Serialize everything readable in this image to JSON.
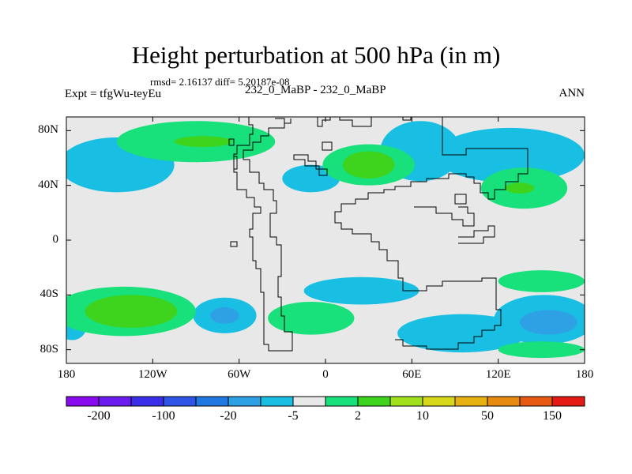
{
  "chart_data": {
    "type": "heatmap",
    "title": "Height perturbation at 500 hPa (in m)",
    "stats_line": "rmsd= 2.16137 diff= 5.20187e-08",
    "experiment": "Expt = tfgWu-teyEu",
    "subtitle": "232_0_MaBP - 232_0_MaBP",
    "season": "ANN",
    "lon_range": [
      -180,
      180
    ],
    "lat_range": [
      -90,
      90
    ],
    "x_ticks": [
      {
        "value": -180,
        "label": "180"
      },
      {
        "value": -120,
        "label": "120W"
      },
      {
        "value": -60,
        "label": "60W"
      },
      {
        "value": 0,
        "label": "0"
      },
      {
        "value": 60,
        "label": "60E"
      },
      {
        "value": 120,
        "label": "120E"
      },
      {
        "value": 180,
        "label": "180"
      }
    ],
    "y_ticks": [
      {
        "value": 80,
        "label": "80N"
      },
      {
        "value": 40,
        "label": "40N"
      },
      {
        "value": 0,
        "label": "0"
      },
      {
        "value": -40,
        "label": "40S"
      },
      {
        "value": -80,
        "label": "80S"
      }
    ],
    "colorbar": {
      "colors": [
        "#8a0aef",
        "#6a1cf0",
        "#3a2ee8",
        "#2f55e6",
        "#1f78e2",
        "#2ea0e4",
        "#18bfe3",
        "#e8e8e8",
        "#18e07a",
        "#3ed41e",
        "#a0e01c",
        "#d8d81a",
        "#e6b212",
        "#e68a10",
        "#e65a12",
        "#e61a14"
      ],
      "labels": [
        {
          "index": 1,
          "text": "-200"
        },
        {
          "index": 3,
          "text": "-100"
        },
        {
          "index": 5,
          "text": "-20"
        },
        {
          "index": 7,
          "text": "-5"
        },
        {
          "index": 9,
          "text": "2"
        },
        {
          "index": 11,
          "text": "10"
        },
        {
          "index": 13,
          "text": "50"
        },
        {
          "index": 15,
          "text": "150"
        }
      ]
    },
    "anomaly_regions": [
      {
        "level": "-5",
        "color": "#18bfe3",
        "lon_center": 66,
        "lat_center": 65,
        "lon_halfwidth": 28,
        "lat_halfwidth": 22
      },
      {
        "level": "-5",
        "color": "#18bfe3",
        "lon_center": 128,
        "lat_center": 62,
        "lon_halfwidth": 52,
        "lat_halfwidth": 20
      },
      {
        "level": "-5",
        "color": "#18bfe3",
        "lon_center": -145,
        "lat_center": 55,
        "lon_halfwidth": 40,
        "lat_halfwidth": 20
      },
      {
        "level": "-5",
        "color": "#18bfe3",
        "lon_center": -10,
        "lat_center": 45,
        "lon_halfwidth": 20,
        "lat_halfwidth": 10
      },
      {
        "level": "-5",
        "color": "#18bfe3",
        "lon_center": 25,
        "lat_center": -37,
        "lon_halfwidth": 40,
        "lat_halfwidth": 10
      },
      {
        "level": "-5",
        "color": "#18bfe3",
        "lon_center": -70,
        "lat_center": -55,
        "lon_halfwidth": 22,
        "lat_halfwidth": 13
      },
      {
        "level": "-5",
        "color": "#18bfe3",
        "lon_center": 95,
        "lat_center": -68,
        "lon_halfwidth": 45,
        "lat_halfwidth": 14
      },
      {
        "level": "-5",
        "color": "#18bfe3",
        "lon_center": 152,
        "lat_center": -58,
        "lon_halfwidth": 35,
        "lat_halfwidth": 18
      },
      {
        "level": "-5",
        "color": "#18bfe3",
        "lon_center": -176,
        "lat_center": -63,
        "lon_halfwidth": 10,
        "lat_halfwidth": 10
      },
      {
        "level": "-20",
        "color": "#2ea0e4",
        "lon_center": -70,
        "lat_center": -55,
        "lon_halfwidth": 10,
        "lat_halfwidth": 6
      },
      {
        "level": "-20",
        "color": "#2ea0e4",
        "lon_center": 155,
        "lat_center": -60,
        "lon_halfwidth": 20,
        "lat_halfwidth": 9
      },
      {
        "level": "2",
        "color": "#18e07a",
        "lon_center": -90,
        "lat_center": 72,
        "lon_halfwidth": 55,
        "lat_halfwidth": 15
      },
      {
        "level": "2",
        "color": "#18e07a",
        "lon_center": 30,
        "lat_center": 55,
        "lon_halfwidth": 32,
        "lat_halfwidth": 15
      },
      {
        "level": "2",
        "color": "#18e07a",
        "lon_center": 138,
        "lat_center": 38,
        "lon_halfwidth": 30,
        "lat_halfwidth": 15
      },
      {
        "level": "2",
        "color": "#18e07a",
        "lon_center": -140,
        "lat_center": -52,
        "lon_halfwidth": 50,
        "lat_halfwidth": 18
      },
      {
        "level": "2",
        "color": "#18e07a",
        "lon_center": -10,
        "lat_center": -57,
        "lon_halfwidth": 30,
        "lat_halfwidth": 12
      },
      {
        "level": "2",
        "color": "#18e07a",
        "lon_center": 150,
        "lat_center": -30,
        "lon_halfwidth": 30,
        "lat_halfwidth": 8
      },
      {
        "level": "2",
        "color": "#18e07a",
        "lon_center": 150,
        "lat_center": -80,
        "lon_halfwidth": 30,
        "lat_halfwidth": 6
      },
      {
        "level": "10",
        "color": "#3ed41e",
        "lon_center": -85,
        "lat_center": 72,
        "lon_halfwidth": 20,
        "lat_halfwidth": 4
      },
      {
        "level": "10",
        "color": "#3ed41e",
        "lon_center": 30,
        "lat_center": 55,
        "lon_halfwidth": 18,
        "lat_halfwidth": 10
      },
      {
        "level": "10",
        "color": "#3ed41e",
        "lon_center": 135,
        "lat_center": 38,
        "lon_halfwidth": 10,
        "lat_halfwidth": 4
      },
      {
        "level": "10",
        "color": "#3ed41e",
        "lon_center": -135,
        "lat_center": -52,
        "lon_halfwidth": 32,
        "lat_halfwidth": 12
      }
    ]
  }
}
